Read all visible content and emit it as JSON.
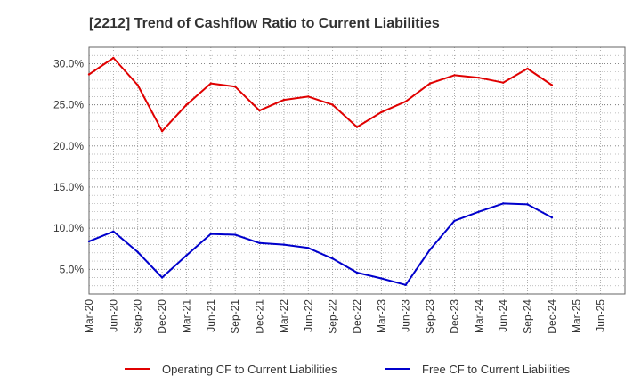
{
  "chart_data": {
    "type": "line",
    "title": "[2212]  Trend of Cashflow Ratio to Current Liabilities",
    "xlabel": "",
    "ylabel": "",
    "categories": [
      "Mar-20",
      "Jun-20",
      "Sep-20",
      "Dec-20",
      "Mar-21",
      "Jun-21",
      "Sep-21",
      "Dec-21",
      "Mar-22",
      "Jun-22",
      "Sep-22",
      "Dec-22",
      "Mar-23",
      "Jun-23",
      "Sep-23",
      "Dec-23",
      "Mar-24",
      "Jun-24",
      "Sep-24",
      "Dec-24",
      "Mar-25",
      "Jun-25"
    ],
    "yticks": [
      "5.0%",
      "10.0%",
      "15.0%",
      "20.0%",
      "25.0%",
      "30.0%"
    ],
    "ylim": [
      2.0,
      32.0
    ],
    "grid": true,
    "legend_position": "bottom",
    "series": [
      {
        "name": "Operating CF to Current Liabilities",
        "color": "#e00000",
        "values": [
          28.7,
          30.7,
          27.4,
          21.8,
          25.0,
          27.6,
          27.2,
          24.3,
          25.6,
          26.0,
          25.0,
          22.3,
          24.1,
          25.4,
          27.6,
          28.6,
          28.3,
          27.7,
          29.4,
          27.4,
          null,
          null
        ]
      },
      {
        "name": "Free CF to Current Liabilities",
        "color": "#0000cc",
        "values": [
          8.4,
          9.6,
          7.1,
          4.0,
          6.7,
          9.3,
          9.2,
          8.2,
          8.0,
          7.6,
          6.3,
          4.6,
          3.9,
          3.1,
          7.4,
          10.9,
          12.0,
          13.0,
          12.9,
          11.3,
          null,
          null
        ]
      }
    ]
  }
}
